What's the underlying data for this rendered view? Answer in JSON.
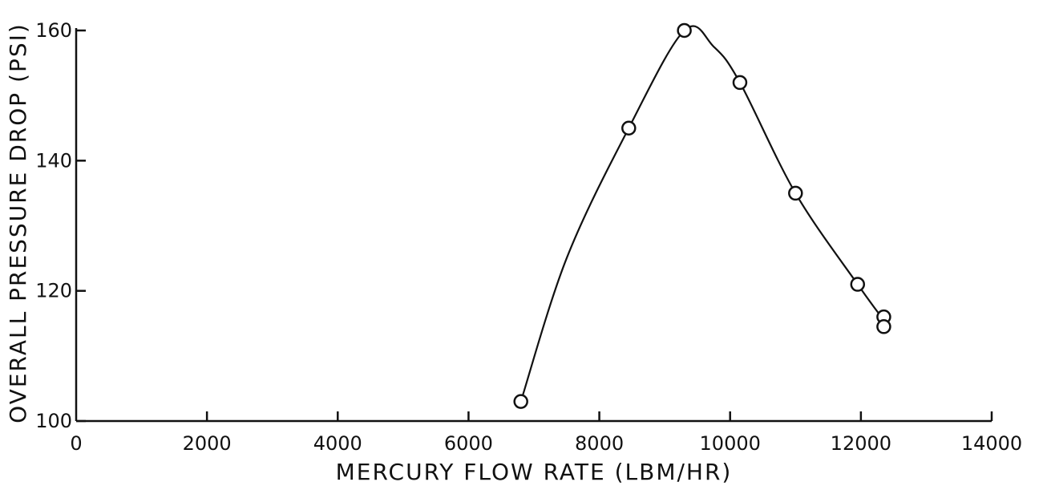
{
  "chart_data": {
    "type": "scatter",
    "xlabel": "MERCURY FLOW RATE (LBM/HR)",
    "ylabel": "OVERALL PRESSURE DROP (PSI)",
    "xlim": [
      0,
      14000
    ],
    "ylim": [
      100,
      160
    ],
    "x_ticks": [
      0,
      2000,
      4000,
      6000,
      8000,
      10000,
      12000,
      14000
    ],
    "y_ticks": [
      100,
      120,
      140,
      160
    ],
    "x_tick_labels": [
      "0",
      "2000",
      "4000",
      "6000",
      "8000",
      "10000",
      "12000",
      "14000"
    ],
    "y_tick_labels": [
      "100",
      "120",
      "140",
      "160"
    ],
    "grid": false,
    "series": [
      {
        "points": [
          {
            "x": 6800,
            "y": 103
          },
          {
            "x": 8450,
            "y": 145
          },
          {
            "x": 9300,
            "y": 160
          },
          {
            "x": 10150,
            "y": 152
          },
          {
            "x": 11000,
            "y": 135
          },
          {
            "x": 11950,
            "y": 121
          },
          {
            "x": 12350,
            "y": 116
          },
          {
            "x": 12350,
            "y": 114.5
          }
        ],
        "curve": [
          {
            "x": 6800,
            "y": 103
          },
          {
            "x": 7500,
            "y": 125
          },
          {
            "x": 8450,
            "y": 145
          },
          {
            "x": 9300,
            "y": 160
          },
          {
            "x": 9750,
            "y": 157.5
          },
          {
            "x": 10150,
            "y": 152
          },
          {
            "x": 11000,
            "y": 135
          },
          {
            "x": 11950,
            "y": 121
          },
          {
            "x": 12350,
            "y": 115.5
          }
        ]
      }
    ]
  }
}
